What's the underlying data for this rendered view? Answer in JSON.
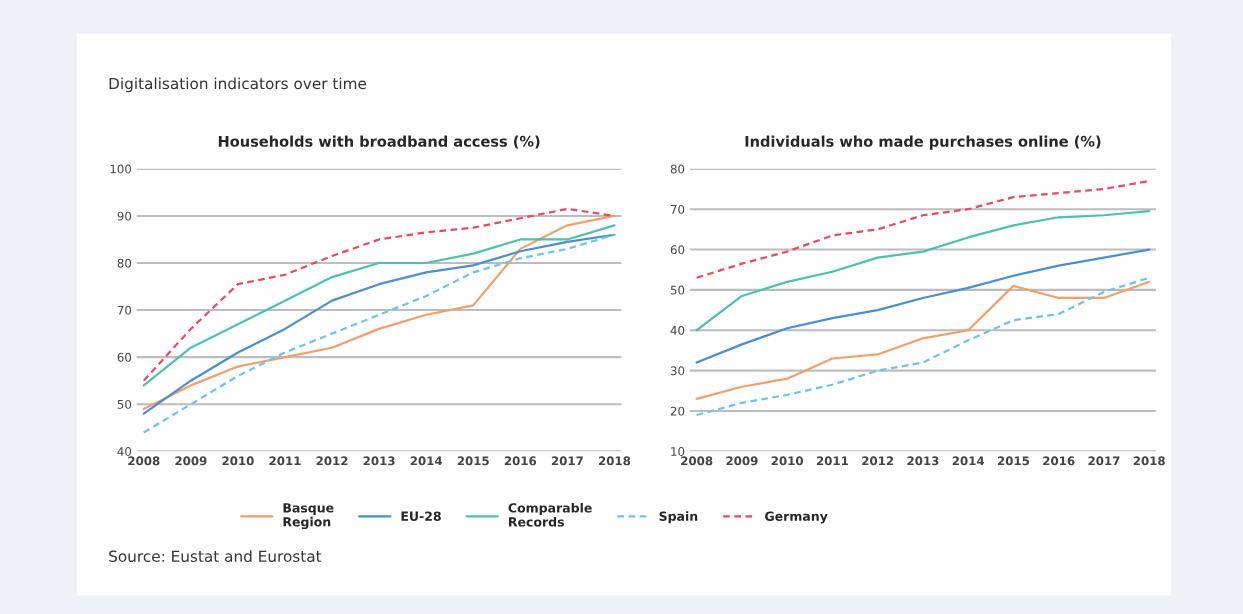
{
  "chart_data": [
    {
      "type": "line",
      "title": "Households with broadband access (%)",
      "annotations": [
        "Digitalisation indicators over time",
        "Source: Eustat and Eurostat"
      ],
      "categories": [
        "2008",
        "2009",
        "2010",
        "2011",
        "2012",
        "2013",
        "2014",
        "2015",
        "2016",
        "2017",
        "2018"
      ],
      "series": [
        {
          "name": "Basque Region",
          "color": "#f0a06a",
          "values": [
            49,
            54,
            58,
            60,
            62,
            66,
            69,
            71,
            83,
            88,
            90
          ]
        },
        {
          "name": "EU-28",
          "color": "#4a8fd0",
          "values": [
            48,
            55,
            61,
            66,
            72,
            75.5,
            78,
            79.5,
            82.5,
            84.5,
            86
          ]
        },
        {
          "name": "Comparable Records",
          "color": "#4cc2a8",
          "values": [
            54,
            62,
            67,
            72,
            77,
            80,
            80,
            82,
            85,
            85,
            88
          ]
        },
        {
          "name": "Spain",
          "color": "#6cc4e8",
          "line_style": "dashed",
          "values": [
            44,
            50,
            56,
            61,
            65,
            69,
            73,
            78,
            81,
            83,
            86
          ]
        },
        {
          "name": "Germany",
          "color": "#e84a5f",
          "line_style": "dashed",
          "values": [
            55,
            66,
            75.5,
            77.5,
            81.5,
            85,
            86.5,
            87.5,
            89.5,
            91.5,
            90
          ]
        }
      ],
      "ylim": [
        40,
        100
      ],
      "yticks": [
        40,
        50,
        60,
        70,
        80,
        90,
        100
      ],
      "grid": "y",
      "legend": "bottom"
    },
    {
      "type": "line",
      "title": "Individuals who made purchases online (%)",
      "categories": [
        "2008",
        "2009",
        "2010",
        "2011",
        "2012",
        "2013",
        "2014",
        "2015",
        "2016",
        "2017",
        "2018"
      ],
      "series": [
        {
          "name": "Basque Region",
          "color": "#f0a06a",
          "values": [
            23,
            26,
            28,
            33,
            34,
            38,
            40,
            51,
            48,
            48,
            52
          ]
        },
        {
          "name": "EU-28",
          "color": "#4a8fd0",
          "values": [
            32,
            36.5,
            40.5,
            43,
            45,
            48,
            50.5,
            53.5,
            56,
            58,
            60
          ]
        },
        {
          "name": "Comparable Records",
          "color": "#4cc2a8",
          "values": [
            40,
            48.5,
            52,
            54.5,
            58,
            59.5,
            63,
            66,
            68,
            68.5,
            69.5
          ]
        },
        {
          "name": "Spain",
          "color": "#6cc4e8",
          "line_style": "dashed",
          "values": [
            19,
            22,
            24,
            26.5,
            30,
            32,
            37.5,
            42.5,
            44,
            49.5,
            53
          ]
        },
        {
          "name": "Germany",
          "color": "#e84a5f",
          "line_style": "dashed",
          "values": [
            53,
            56.5,
            59.5,
            63.5,
            65,
            68.5,
            70,
            73,
            74,
            75,
            77
          ]
        }
      ],
      "ylim": [
        10,
        80
      ],
      "yticks": [
        10,
        20,
        30,
        40,
        50,
        60,
        70,
        80
      ],
      "grid": "y"
    }
  ]
}
